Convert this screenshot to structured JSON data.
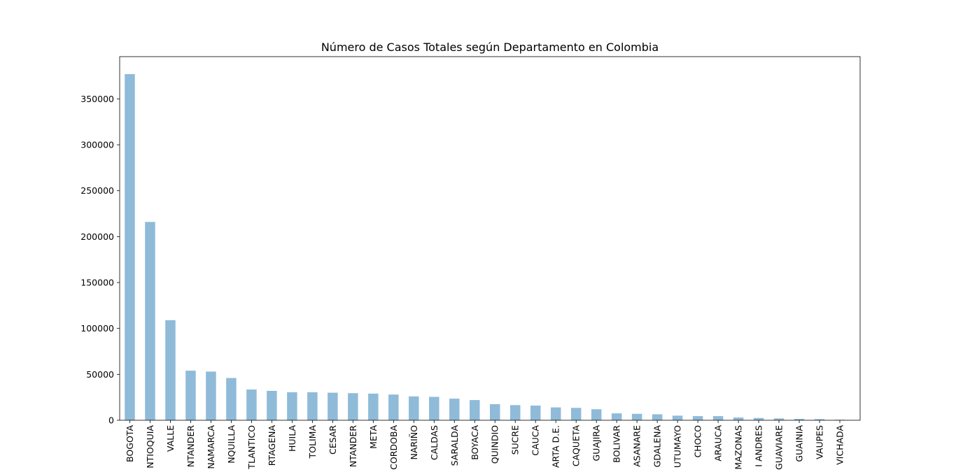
{
  "chart_data": {
    "type": "bar",
    "title": "Número de Casos Totales según Departamento en Colombia",
    "categories": [
      "BOGOTA",
      "NTIOQUIA",
      "VALLE",
      "NTANDER",
      "NAMARCA",
      "NQUILLA",
      "TLANTICO",
      "RTAGENA",
      "HUILA",
      "TOLIMA",
      "CESAR",
      "NTANDER",
      "META",
      "CORDOBA",
      "NARIÑO",
      "CALDAS",
      "SARALDA",
      "BOYACA",
      "QUINDIO",
      "SUCRE",
      "CAUCA",
      "ARTA D.E.",
      "CAQUETA",
      "GUAJIRA",
      "BOLIVAR",
      "ASANARE",
      "GDALENA",
      "UTUMAYO",
      "CHOCO",
      "ARAUCA",
      "MAZONAS",
      "I ANDRES",
      "GUAVIARE",
      "GUAINIA",
      "VAUPES",
      "VICHADA"
    ],
    "values": [
      377000,
      216000,
      109000,
      54000,
      53000,
      46000,
      33500,
      32000,
      30500,
      30500,
      30000,
      29500,
      29000,
      28000,
      26000,
      25500,
      23500,
      22000,
      17500,
      16500,
      16000,
      14000,
      13500,
      12000,
      7500,
      7000,
      6500,
      5000,
      4500,
      4500,
      3000,
      2500,
      2000,
      1500,
      1200,
      600
    ],
    "color": "#8fbbd9",
    "ylim": [
      0,
      396000
    ],
    "yticks": [
      0,
      50000,
      100000,
      150000,
      200000,
      250000,
      300000,
      350000
    ],
    "grid": false
  }
}
